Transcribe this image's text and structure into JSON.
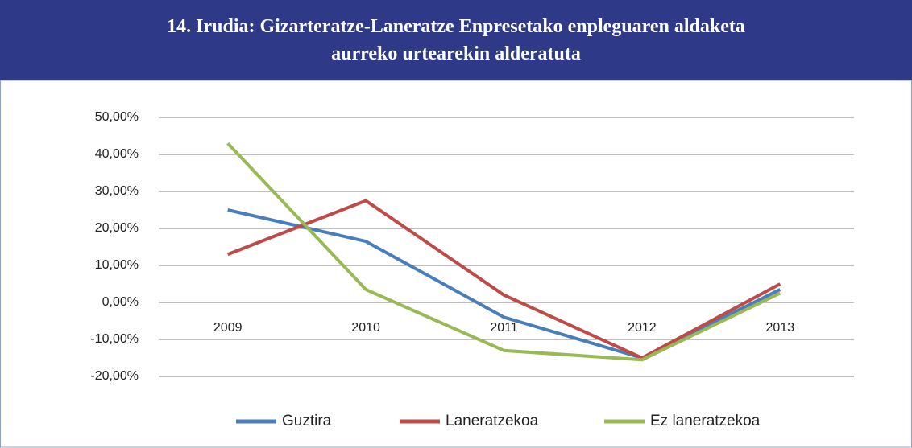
{
  "chart_data": {
    "type": "line",
    "title": "14. Irudia: Gizarteratze-Laneratze Enpresetako enpleguaren aldaketa aurreko urtearekin alderatuta",
    "categories": [
      "2009",
      "2010",
      "2011",
      "2012",
      "2013"
    ],
    "series": [
      {
        "name": "Guztira",
        "color": "#4a7ebb",
        "values": [
          25,
          16.5,
          -4,
          -15,
          3.5
        ]
      },
      {
        "name": "Laneratzekoa",
        "color": "#be4b48",
        "values": [
          13,
          27.5,
          2,
          -15,
          5
        ]
      },
      {
        "name": "Ez laneratzekoa",
        "color": "#98b954",
        "values": [
          43,
          3.5,
          -13,
          -15.5,
          2.5
        ]
      }
    ],
    "ylim": [
      -20,
      50
    ],
    "yticks": [
      {
        "value": 50,
        "label": "50,00%"
      },
      {
        "value": 40,
        "label": "40,00%"
      },
      {
        "value": 30,
        "label": "30,00%"
      },
      {
        "value": 20,
        "label": "20,00%"
      },
      {
        "value": 10,
        "label": "10,00%"
      },
      {
        "value": 0,
        "label": "0,00%"
      },
      {
        "value": -10,
        "label": "-10,00%"
      },
      {
        "value": -20,
        "label": "-20,00%"
      }
    ],
    "grid": true,
    "legend": "bottom"
  }
}
